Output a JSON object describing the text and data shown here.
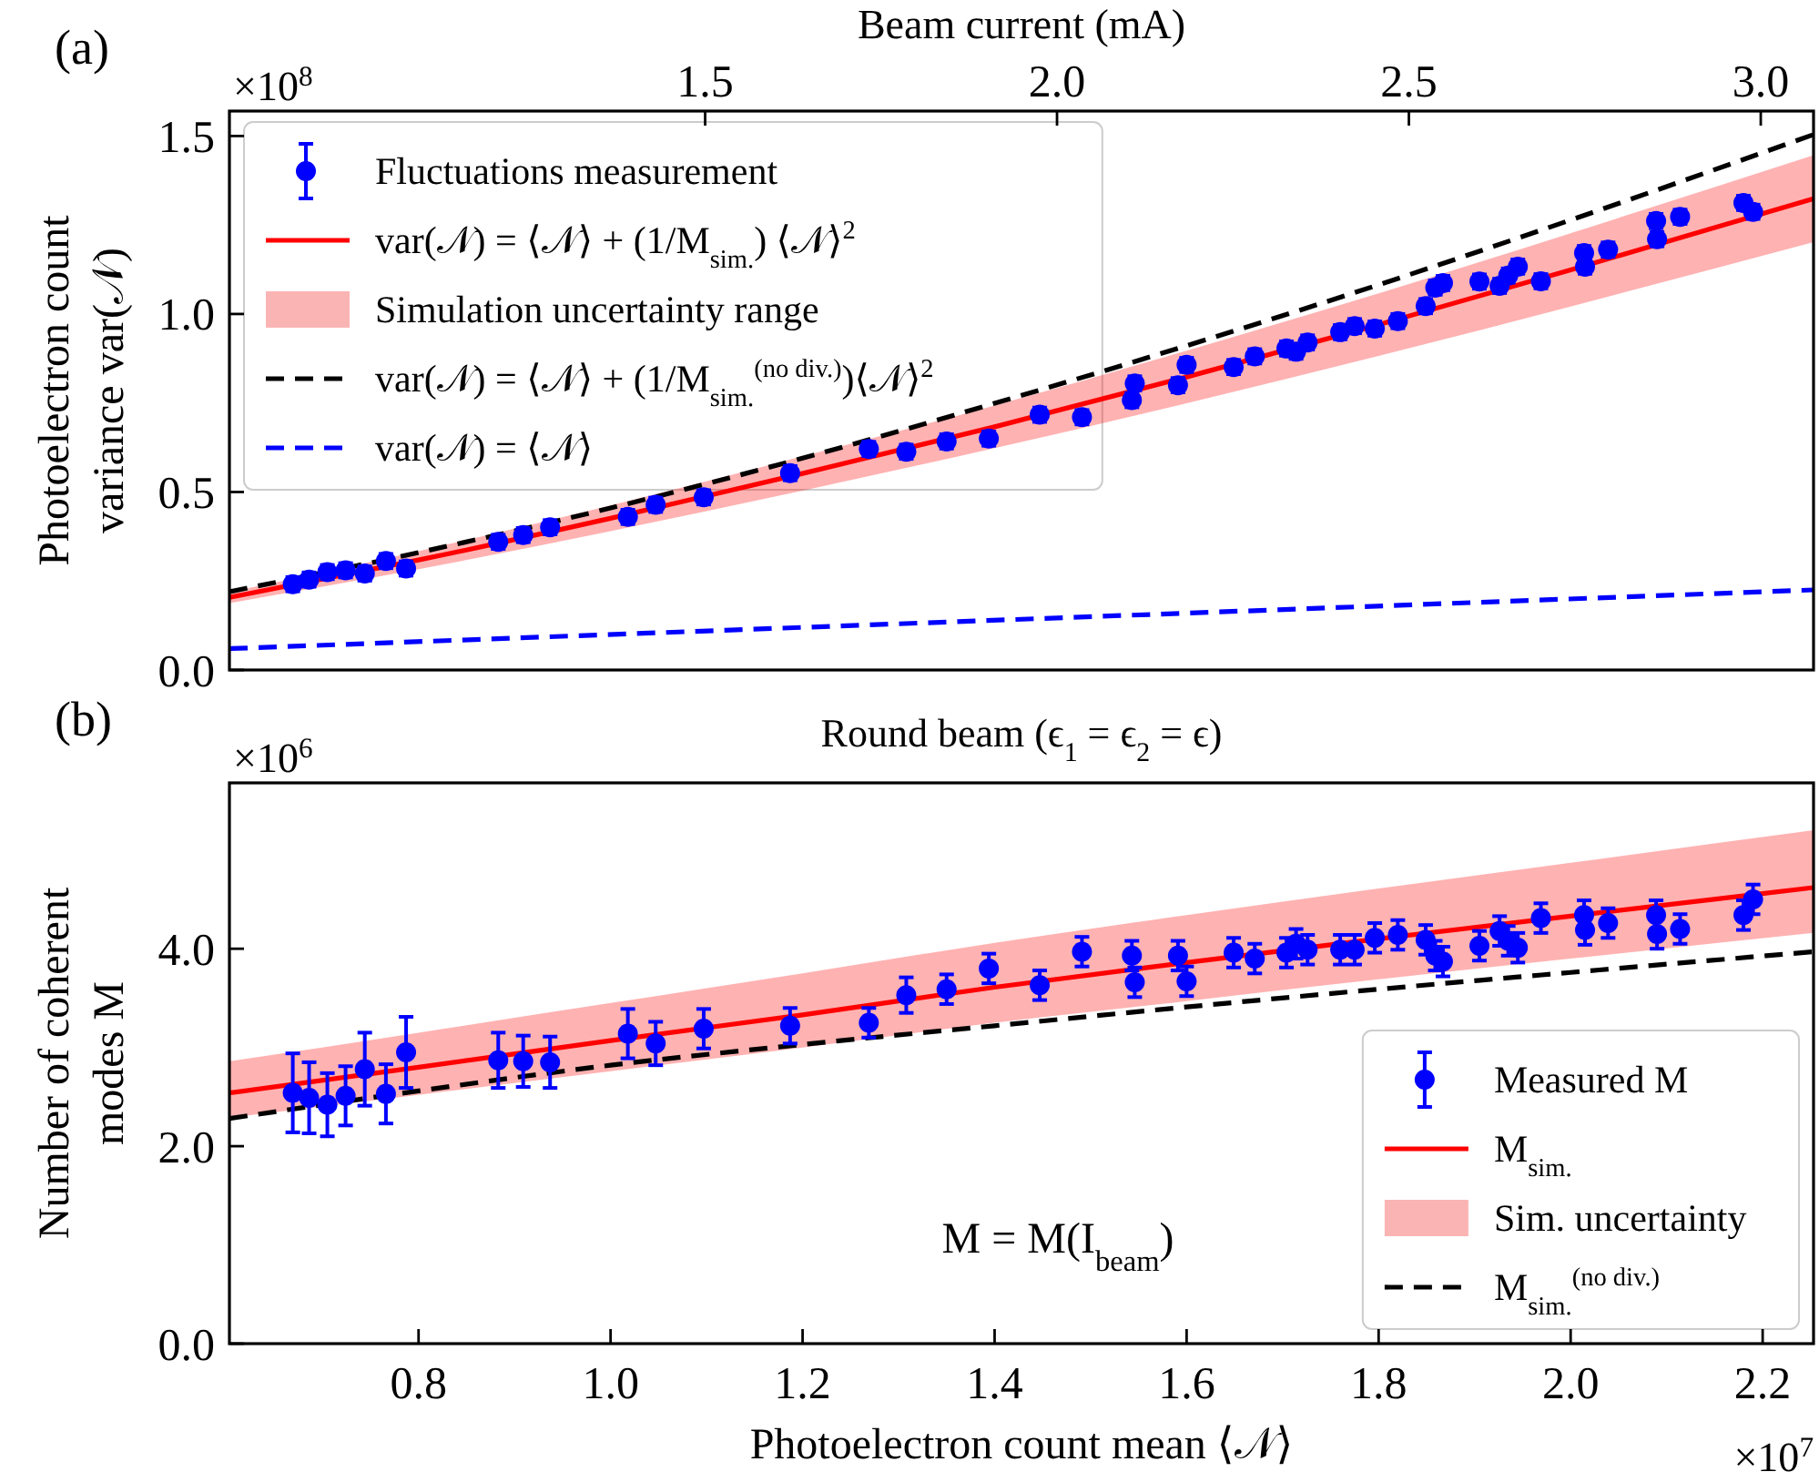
{
  "chart_data": [
    {
      "type": "scatter",
      "x2label": "Beam current (mA)",
      "ylabel": "Photoelectron count\nvariance var(𝒩)",
      "annotations": [
        "(a)",
        "×10$^{8}$"
      ],
      "xlim": [
        0.603,
        2.253
      ],
      "ylim": [
        0,
        1.57
      ],
      "yticks": [
        {
          "value": 0,
          "label": "0.0"
        },
        {
          "value": 0.5,
          "label": "0.5"
        },
        {
          "value": 1,
          "label": "1.0"
        },
        {
          "value": 1.5,
          "label": "1.5"
        }
      ],
      "x2lim": [
        0.824,
        3.075
      ],
      "x2ticks": [
        1.5,
        {
          "value": 2,
          "label": "2.0"
        },
        2.5,
        {
          "value": 3,
          "label": "3.0"
        }
      ],
      "tick_labels": "y",
      "legend": "top left",
      "series": [
        {
          "name": "Fluctuations measurement",
          "marker": "circle",
          "color": "#0000ff",
          "x": [
            0.669,
            0.686,
            0.705,
            0.724,
            0.744,
            0.766,
            0.787,
            0.883,
            0.909,
            0.937,
            1.018,
            1.047,
            1.097,
            1.187,
            1.269,
            1.308,
            1.35,
            1.394,
            1.447,
            1.491,
            1.543,
            1.546,
            1.591,
            1.6,
            1.649,
            1.671,
            1.704,
            1.714,
            1.726,
            1.76,
            1.775,
            1.796,
            1.82,
            1.849,
            1.859,
            1.867,
            1.905,
            1.926,
            1.935,
            1.945,
            1.969,
            2.014,
            2.015,
            2.039,
            2.089,
            2.09,
            2.114,
            2.18,
            2.19
          ],
          "values": [
            0.241,
            0.254,
            0.275,
            0.28,
            0.271,
            0.306,
            0.285,
            0.36,
            0.379,
            0.401,
            0.43,
            0.464,
            0.485,
            0.553,
            0.621,
            0.613,
            0.642,
            0.65,
            0.717,
            0.71,
            0.758,
            0.805,
            0.8,
            0.857,
            0.851,
            0.881,
            0.903,
            0.894,
            0.92,
            0.949,
            0.966,
            0.959,
            0.98,
            1.022,
            1.074,
            1.087,
            1.091,
            1.079,
            1.108,
            1.133,
            1.092,
            1.171,
            1.133,
            1.181,
            1.261,
            1.21,
            1.273,
            1.312,
            1.287
          ],
          "errors": [
            0.02,
            0.02,
            0.02,
            0.02,
            0.02,
            0.02,
            0.02,
            0.02,
            0.02,
            0.02,
            0.02,
            0.02,
            0.02,
            0.02,
            0.02,
            0.02,
            0.02,
            0.02,
            0.02,
            0.02,
            0.02,
            0.02,
            0.02,
            0.02,
            0.02,
            0.02,
            0.02,
            0.02,
            0.02,
            0.02,
            0.02,
            0.02,
            0.02,
            0.02,
            0.02,
            0.02,
            0.02,
            0.02,
            0.02,
            0.02,
            0.02,
            0.02,
            0.02,
            0.02,
            0.02,
            0.02,
            0.02,
            0.02,
            0.02
          ]
        },
        {
          "name": "var(𝒩) = ⟨𝒩⟩ + (1/M$_{sim.}$) ⟨𝒩⟩$^{2}$",
          "type": "line",
          "line_style": "solid",
          "color": "#ff0000",
          "x": [
            0.603,
            0.8,
            1.0,
            1.2,
            1.4,
            1.6,
            1.8,
            2.0,
            2.253
          ],
          "values": [
            0.204,
            0.309,
            0.426,
            0.552,
            0.683,
            0.823,
            0.97,
            1.124,
            1.324
          ],
          "lower": [
            0.188,
            0.283,
            0.39,
            0.504,
            0.623,
            0.749,
            0.882,
            1.021,
            1.202
          ],
          "upper": [
            0.219,
            0.334,
            0.462,
            0.6,
            0.743,
            0.897,
            1.058,
            1.227,
            1.446
          ]
        },
        {
          "name": "Simulation uncertainty range",
          "type": "area",
          "color": "#fbb4b4"
        },
        {
          "name": "var(𝒩) = ⟨𝒩⟩ + (1/M$_{sim.}$$^{(no div.)}$)⟨𝒩⟩$^{2}$",
          "type": "line",
          "line_style": "dashed",
          "color": "#000000",
          "x": [
            0.603,
            0.8,
            1.0,
            1.2,
            1.4,
            1.6,
            1.8,
            2.0,
            2.253
          ],
          "values": [
            0.22,
            0.33,
            0.455,
            0.595,
            0.749,
            0.911,
            1.082,
            1.264,
            1.504
          ]
        },
        {
          "name": "var(𝒩) = ⟨𝒩⟩",
          "type": "line",
          "line_style": "dashed",
          "color": "#0000ff",
          "x": [
            0.603,
            2.253
          ],
          "values": [
            0.06,
            0.225
          ]
        }
      ]
    },
    {
      "type": "scatter",
      "title": "Round beam (ϵ$_{1}$ = ϵ$_{2}$ = ϵ)",
      "xlabel": "Photoelectron count mean ⟨𝒩⟩",
      "ylabel": "Number of coherent\nmodes M",
      "annotations": [
        "(b)",
        "×10$^{6}$",
        "×10$^{7}$",
        "M = M(I$_{beam}$)"
      ],
      "xlim": [
        0.603,
        2.253
      ],
      "ylim": [
        0,
        5.68
      ],
      "xticks": [
        {
          "value": 0.8,
          "label": "0.8"
        },
        {
          "value": 1,
          "label": "1.0"
        },
        {
          "value": 1.2,
          "label": "1.2"
        },
        {
          "value": 1.4,
          "label": "1.4"
        },
        {
          "value": 1.6,
          "label": "1.6"
        },
        {
          "value": 1.8,
          "label": "1.8"
        },
        {
          "value": 2,
          "label": "2.0"
        },
        {
          "value": 2.2,
          "label": "2.2"
        }
      ],
      "yticks": [
        {
          "value": 0,
          "label": "0.0"
        },
        {
          "value": 2,
          "label": "2.0"
        },
        {
          "value": 4,
          "label": "4.0"
        }
      ],
      "legend": "bottom right",
      "series": [
        {
          "name": "Measured M",
          "marker": "circle",
          "color": "#0000ff",
          "x": [
            0.669,
            0.686,
            0.705,
            0.724,
            0.744,
            0.766,
            0.787,
            0.883,
            0.909,
            0.937,
            1.018,
            1.047,
            1.097,
            1.187,
            1.269,
            1.308,
            1.35,
            1.394,
            1.447,
            1.491,
            1.543,
            1.546,
            1.591,
            1.6,
            1.649,
            1.671,
            1.704,
            1.714,
            1.726,
            1.76,
            1.775,
            1.796,
            1.82,
            1.849,
            1.859,
            1.867,
            1.905,
            1.926,
            1.935,
            1.945,
            1.969,
            2.014,
            2.015,
            2.039,
            2.089,
            2.09,
            2.114,
            2.18,
            2.19
          ],
          "values": [
            2.54,
            2.49,
            2.42,
            2.51,
            2.78,
            2.53,
            2.95,
            2.87,
            2.86,
            2.85,
            3.14,
            3.04,
            3.19,
            3.22,
            3.25,
            3.53,
            3.59,
            3.8,
            3.63,
            3.97,
            3.93,
            3.66,
            3.93,
            3.67,
            3.96,
            3.9,
            3.96,
            4.05,
            3.99,
            3.99,
            3.99,
            4.11,
            4.14,
            4.09,
            3.93,
            3.87,
            4.03,
            4.18,
            4.08,
            4.01,
            4.31,
            4.34,
            4.19,
            4.26,
            4.34,
            4.15,
            4.2,
            4.34,
            4.5
          ],
          "errors": [
            0.4,
            0.36,
            0.32,
            0.3,
            0.37,
            0.3,
            0.36,
            0.28,
            0.26,
            0.26,
            0.25,
            0.22,
            0.2,
            0.18,
            0.15,
            0.18,
            0.15,
            0.15,
            0.15,
            0.15,
            0.15,
            0.15,
            0.15,
            0.15,
            0.15,
            0.15,
            0.15,
            0.15,
            0.15,
            0.15,
            0.15,
            0.15,
            0.15,
            0.15,
            0.15,
            0.15,
            0.15,
            0.15,
            0.15,
            0.15,
            0.15,
            0.15,
            0.15,
            0.15,
            0.15,
            0.15,
            0.15,
            0.15,
            0.15
          ]
        },
        {
          "name": "M$_{sim.}$",
          "type": "line",
          "line_style": "solid",
          "color": "#ff0000",
          "x": [
            0.603,
            0.8,
            1.0,
            1.2,
            1.4,
            1.6,
            1.8,
            2.0,
            2.253
          ],
          "values": [
            2.54,
            2.8,
            3.07,
            3.33,
            3.61,
            3.86,
            4.1,
            4.33,
            4.62
          ],
          "lower": [
            2.29,
            2.52,
            2.76,
            3.0,
            3.25,
            3.47,
            3.69,
            3.9,
            4.16
          ],
          "upper": [
            2.86,
            3.15,
            3.45,
            3.75,
            4.06,
            4.34,
            4.61,
            4.87,
            5.2
          ]
        },
        {
          "name": "Sim. uncertainty",
          "type": "area",
          "color": "#fbb4b4"
        },
        {
          "name": "M$_{sim.}$$^{(no div.)}$",
          "type": "line",
          "line_style": "dashed",
          "color": "#000000",
          "x": [
            0.603,
            0.8,
            1.0,
            1.2,
            1.4,
            1.6,
            1.8,
            2.0,
            2.253
          ],
          "values": [
            2.28,
            2.56,
            2.82,
            3.03,
            3.22,
            3.41,
            3.59,
            3.76,
            3.97
          ]
        }
      ]
    }
  ]
}
